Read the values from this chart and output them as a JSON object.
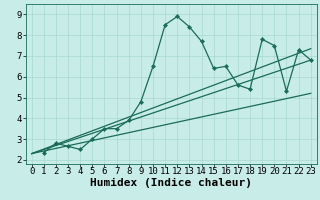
{
  "title": "",
  "xlabel": "Humidex (Indice chaleur)",
  "ylabel": "",
  "bg_color": "#c8ede8",
  "grid_color": "#a8d8d0",
  "line_color": "#1a6b5a",
  "xlim": [
    -0.5,
    23.5
  ],
  "ylim": [
    1.8,
    9.5
  ],
  "xticks": [
    0,
    1,
    2,
    3,
    4,
    5,
    6,
    7,
    8,
    9,
    10,
    11,
    12,
    13,
    14,
    15,
    16,
    17,
    18,
    19,
    20,
    21,
    22,
    23
  ],
  "yticks": [
    2,
    3,
    4,
    5,
    6,
    7,
    8,
    9
  ],
  "curve": {
    "x": [
      1,
      2,
      3,
      4,
      5,
      6,
      7,
      8,
      9,
      10,
      11,
      12,
      13,
      14,
      15,
      16,
      17,
      18,
      19,
      20,
      21,
      22,
      23
    ],
    "y": [
      2.35,
      2.8,
      2.65,
      2.5,
      3.0,
      3.5,
      3.5,
      3.9,
      4.8,
      6.5,
      8.5,
      8.9,
      8.4,
      7.7,
      6.4,
      6.5,
      5.6,
      5.4,
      7.8,
      7.5,
      5.3,
      7.3,
      6.8
    ]
  },
  "straight_lines": [
    {
      "x": [
        0,
        23
      ],
      "y": [
        2.3,
        6.8
      ]
    },
    {
      "x": [
        0,
        23
      ],
      "y": [
        2.3,
        5.2
      ]
    },
    {
      "x": [
        0,
        23
      ],
      "y": [
        2.3,
        7.35
      ]
    }
  ],
  "font_family": "monospace",
  "xlabel_fontsize": 8,
  "tick_fontsize": 6.5
}
